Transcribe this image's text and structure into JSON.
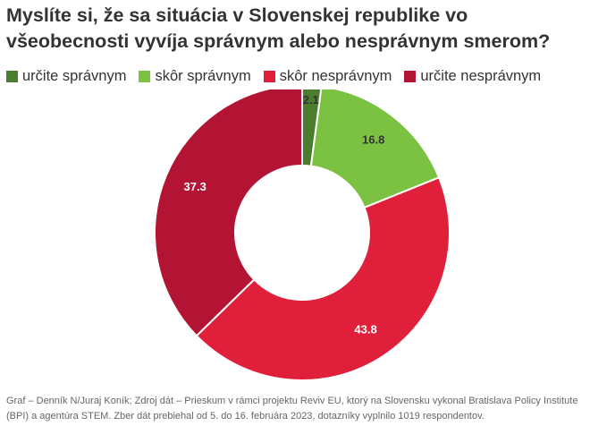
{
  "title": "Myslíte si, že sa situácia v Slovenskej republike vo všeobecnosti vyvíja správnym alebo nesprávnym smerom?",
  "footer": "Graf – Denník N/Juraj Koník; Zdroj dát – Prieskum v rámci projektu Reviv EU, ktorý na Slovensku vykonal Bratislava Policy Institute (BPI) a agentúra STEM. Zber dát prebiehal od 5. do 16. februára 2023, dotazníky vyplnilo 1019 respondentov.",
  "chart_data": {
    "type": "pie",
    "donut": true,
    "title": "Myslíte si, že sa situácia v Slovenskej republike vo všeobecnosti vyvíja správnym alebo nesprávnym smerom?",
    "legend_position": "top-left",
    "categories": [
      "určite správnym",
      "skôr správnym",
      "skôr nesprávnym",
      "určite nesprávnym"
    ],
    "values": [
      2.1,
      16.8,
      43.8,
      37.3
    ],
    "labels": [
      "2.1",
      "16.8",
      "43.8",
      "37.3"
    ],
    "colors": [
      "#4a7d2e",
      "#7cc242",
      "#e0203b",
      "#b31433"
    ],
    "label_colors": [
      "#333333",
      "#333333",
      "#ffffff",
      "#ffffff"
    ]
  }
}
